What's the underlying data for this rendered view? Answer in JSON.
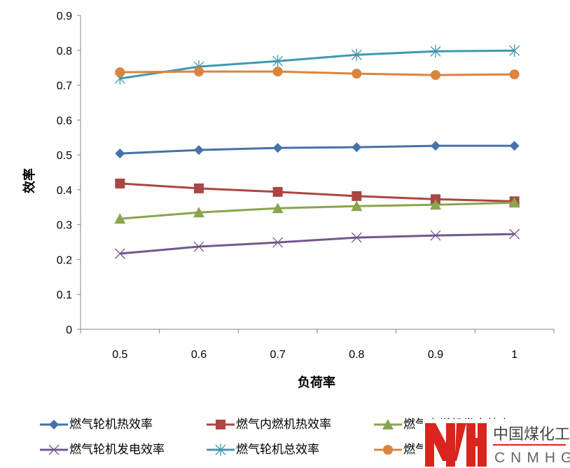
{
  "chart_data": {
    "type": "line",
    "xlabel": "负荷率",
    "ylabel": "效率",
    "categories": [
      "0.5",
      "0.6",
      "0.7",
      "0.8",
      "0.9",
      "1"
    ],
    "ylim": [
      0,
      0.9
    ],
    "yticks": [
      "0",
      "0.1",
      "0.2",
      "0.3",
      "0.4",
      "0.5",
      "0.6",
      "0.7",
      "0.8",
      "0.9"
    ],
    "grid": false,
    "legend_position": "bottom",
    "series": [
      {
        "name": "燃气轮机热效率",
        "color": "#4572A7",
        "marker": "diamond",
        "values": [
          0.504,
          0.514,
          0.52,
          0.522,
          0.526,
          0.526
        ]
      },
      {
        "name": "燃气内燃机热效率",
        "color": "#AA4643",
        "marker": "square",
        "values": [
          0.418,
          0.404,
          0.394,
          0.382,
          0.373,
          0.367
        ]
      },
      {
        "name": "燃气内燃机发电效率",
        "color": "#89A54E",
        "marker": "triangle",
        "values": [
          0.317,
          0.335,
          0.347,
          0.353,
          0.357,
          0.363
        ]
      },
      {
        "name": "燃气轮机发电效率",
        "color": "#71588F",
        "marker": "x",
        "values": [
          0.217,
          0.237,
          0.249,
          0.263,
          0.269,
          0.273
        ]
      },
      {
        "name": "燃气轮机总效率",
        "color": "#4198AF",
        "marker": "star",
        "values": [
          0.719,
          0.753,
          0.769,
          0.787,
          0.797,
          0.799
        ]
      },
      {
        "name": "燃气内燃机总效率",
        "color": "#DB843D",
        "marker": "circle",
        "values": [
          0.737,
          0.739,
          0.739,
          0.733,
          0.729,
          0.731
        ]
      }
    ]
  },
  "watermark": {
    "cn": "中国煤化工",
    "en": "CNMHG",
    "color": "#D9251D"
  }
}
